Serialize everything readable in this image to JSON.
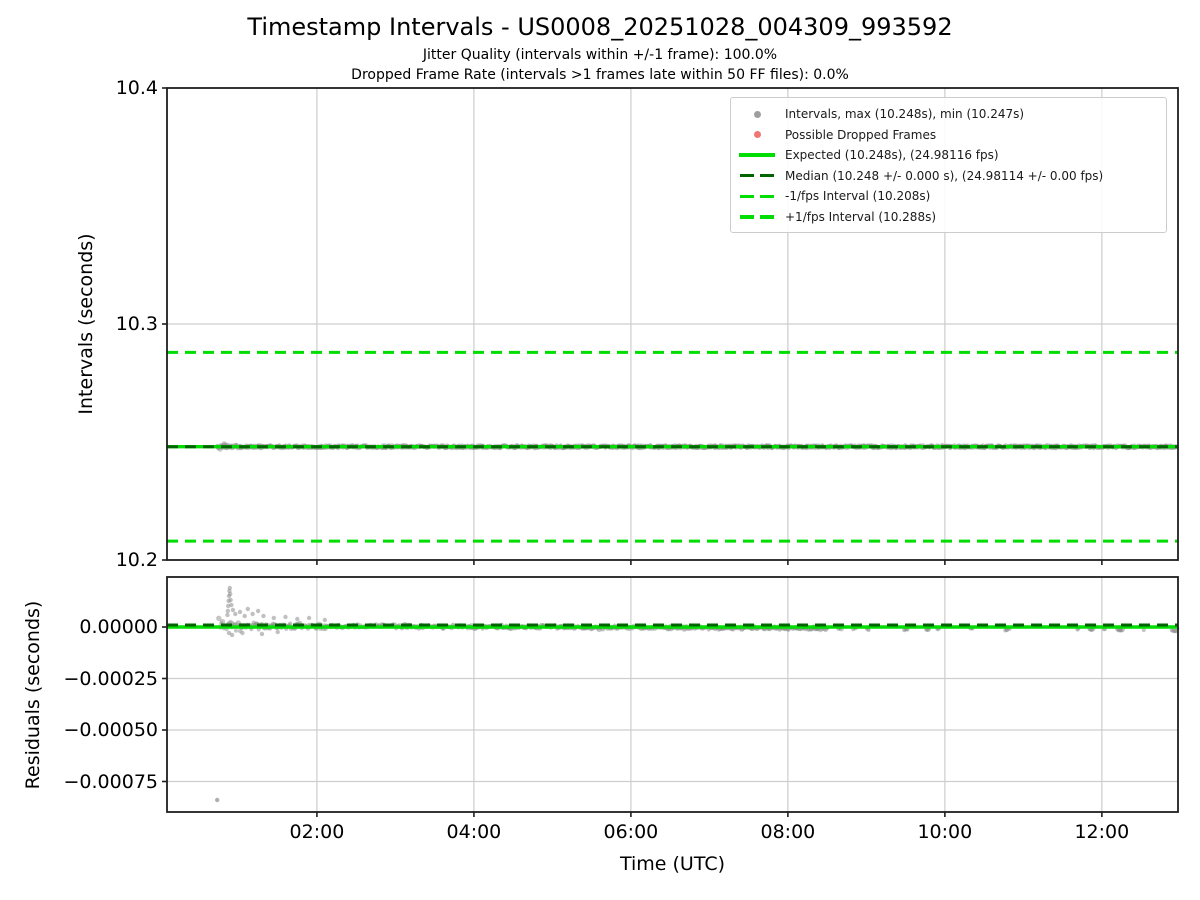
{
  "figure": {
    "title": "Timestamp Intervals - US0008_20251028_004309_993592",
    "subtitle1": "Jitter Quality (intervals within +/-1 frame): 100.0%",
    "subtitle2": "Dropped Frame Rate (intervals >1 frames late within 50 FF files): 0.0%"
  },
  "colors": {
    "expected_line": "#00dd00",
    "median_line": "#006400",
    "interval_scatter": "#8c8c8c",
    "dropped_frame_marker": "#f07575",
    "gridline": "#cdcdcd",
    "spine": "#1f1f1f"
  },
  "legend": {
    "items": [
      {
        "marker": "dot",
        "color": "#9e9e9e",
        "label": "Intervals, max (10.248s), min (10.247s)"
      },
      {
        "marker": "dot",
        "color": "#f07575",
        "label": "Possible Dropped Frames"
      },
      {
        "marker": "solid",
        "color": "#00dd00",
        "label": "Expected (10.248s), (24.98116 fps)"
      },
      {
        "marker": "dashed",
        "color": "#006400",
        "label": "Median (10.248 +/- 0.000 s), (24.98114 +/- 0.00 fps)"
      },
      {
        "marker": "dashed",
        "color": "#00dd00",
        "label": "-1/fps Interval (10.208s)"
      },
      {
        "marker": "dashed",
        "color": "#00dd00",
        "label": "+1/fps Interval (10.288s)"
      }
    ]
  },
  "chart_data": [
    {
      "type": "scatter",
      "subplot": "intervals",
      "ylabel": "Intervals (seconds)",
      "ylim": [
        10.2,
        10.4
      ],
      "yticks": [
        10.2,
        10.3,
        10.4
      ],
      "ytick_labels": [
        "10.2",
        "10.3",
        "10.4"
      ],
      "xlim_hours": [
        0.09,
        12.97
      ],
      "xtick_hours": [
        2,
        4,
        6,
        8,
        10,
        12
      ],
      "xtick_labels": [
        "02:00",
        "04:00",
        "06:00",
        "08:00",
        "10:00",
        "12:00"
      ],
      "grid": true,
      "legend_position": "upper right",
      "series": [
        {
          "name": "Intervals, max (10.248s), min (10.247s)",
          "type": "scatter",
          "color": "#8c8c8c",
          "summary": {
            "start_hour_utc": 0.72,
            "end_hour_utc": 12.96,
            "center_s": 10.248,
            "max_s": 10.248,
            "min_s": 10.247,
            "band_halfwidth_s": 0.0015
          }
        },
        {
          "name": "Possible Dropped Frames",
          "type": "scatter",
          "color": "#f07575",
          "points": []
        },
        {
          "name": "Expected (10.248s), (24.98116 fps)",
          "type": "hline",
          "style": "solid",
          "color": "#00dd00",
          "y": 10.248
        },
        {
          "name": "Median (10.248 +/- 0.000 s), (24.98114 +/- 0.00 fps)",
          "type": "hline",
          "style": "dashed",
          "color": "#006400",
          "y": 10.248
        },
        {
          "name": "-1/fps Interval (10.208s)",
          "type": "hline",
          "style": "dashed",
          "color": "#00dd00",
          "y": 10.208
        },
        {
          "name": "+1/fps Interval (10.288s)",
          "type": "hline",
          "style": "dashed",
          "color": "#00dd00",
          "y": 10.288
        }
      ]
    },
    {
      "type": "scatter",
      "subplot": "residuals",
      "ylabel": "Residuals (seconds)",
      "xlabel": "Time (UTC)",
      "ylim": [
        -0.000896,
        0.000242
      ],
      "yticks": [
        0.0,
        -0.00025,
        -0.0005,
        -0.00075
      ],
      "ytick_labels": [
        "0.00000",
        "−0.00025",
        "−0.00050",
        "−0.00075"
      ],
      "xlim_hours": [
        0.09,
        12.97
      ],
      "xtick_hours": [
        2,
        4,
        6,
        8,
        10,
        12
      ],
      "xtick_labels": [
        "02:00",
        "04:00",
        "06:00",
        "08:00",
        "10:00",
        "12:00"
      ],
      "grid": true,
      "series": [
        {
          "name": "Residuals",
          "type": "scatter",
          "color": "#8c8c8c",
          "summary": {
            "start_hour_utc": 0.72,
            "end_hour_utc": 12.96,
            "typical_spread_s": 3e-05,
            "initial_spike_max_s": 0.00019,
            "late_bias_s": -2e-05,
            "outlier": {
              "hour_utc": 0.73,
              "value_s": -0.00084
            }
          }
        },
        {
          "name": "Expected",
          "type": "hline",
          "style": "solid",
          "color": "#00dd00",
          "y": 0.0
        },
        {
          "name": "Median",
          "type": "hline",
          "style": "dashed",
          "color": "#006400",
          "y": 1e-05
        }
      ]
    }
  ]
}
